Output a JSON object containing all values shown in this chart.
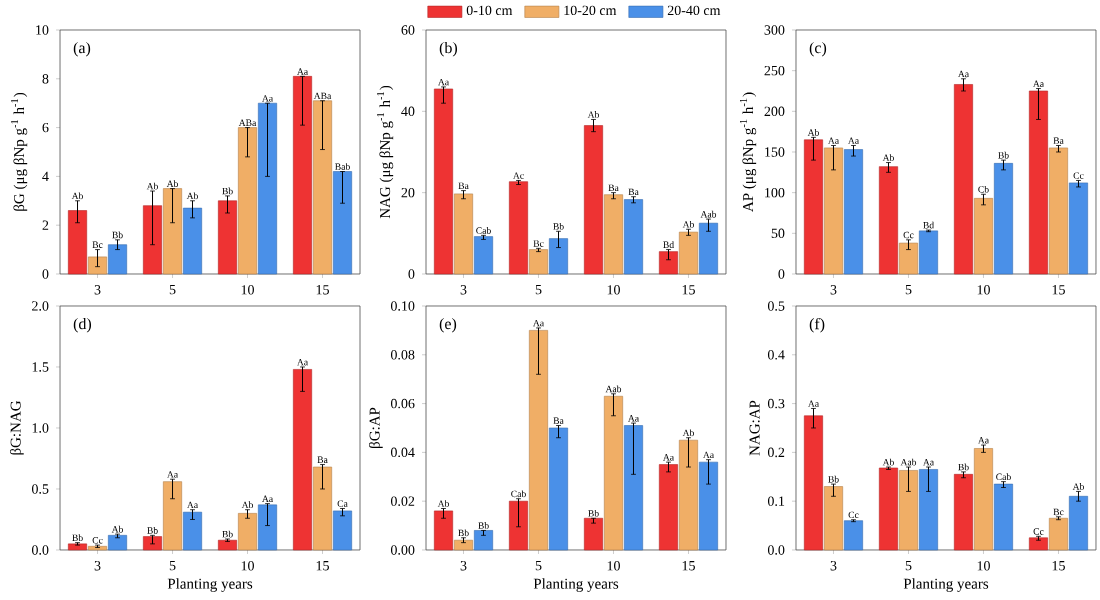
{
  "chart_data": [
    {
      "type": "bar",
      "title": "(a)",
      "ylabel": "βG (μg βNp g$^{-1}$ h$^{-1}$)",
      "categories": [
        "3",
        "5",
        "10",
        "15"
      ],
      "ylim": [
        0,
        10
      ],
      "yticks": [
        0,
        2,
        4,
        6,
        8,
        10
      ],
      "series": [
        {
          "color": "#ee3333",
          "values": [
            2.6,
            2.8,
            3.0,
            8.1
          ],
          "errors": [
            [
              2.1,
              3.0
            ],
            [
              1.2,
              3.4
            ],
            [
              2.5,
              3.2
            ],
            [
              6.1,
              8.1
            ]
          ],
          "value_labels": [
            "Ab",
            "Ab",
            "Bb",
            "Aa"
          ]
        },
        {
          "color": "#f0ae66",
          "values": [
            0.7,
            3.5,
            6.0,
            7.1
          ],
          "errors": [
            [
              0.3,
              1.0
            ],
            [
              2.1,
              3.5
            ],
            [
              4.8,
              6.0
            ],
            [
              5.1,
              7.1
            ]
          ],
          "value_labels": [
            "Bc",
            "Ab",
            "ABa",
            "ABa"
          ]
        },
        {
          "color": "#4a90e8",
          "values": [
            1.2,
            2.7,
            7.0,
            4.2
          ],
          "errors": [
            [
              1.0,
              1.4
            ],
            [
              2.3,
              3.0
            ],
            [
              4.0,
              7.0
            ],
            [
              2.9,
              4.2
            ]
          ],
          "value_labels": [
            "Bb",
            "Ab",
            "Aa",
            "Bab"
          ]
        }
      ]
    },
    {
      "type": "bar",
      "title": "(b)",
      "ylabel": "NAG (μg βNp g$^{-1}$ h$^{-1}$)",
      "categories": [
        "3",
        "5",
        "10",
        "15"
      ],
      "ylim": [
        0,
        60
      ],
      "yticks": [
        0,
        20,
        40,
        60
      ],
      "legend": "top",
      "series": [
        {
          "name": "0-10 cm",
          "color": "#ee3333",
          "values": [
            45.5,
            22.7,
            36.5,
            5.5
          ],
          "errors": [
            [
              42,
              46
            ],
            [
              22,
              23
            ],
            [
              35,
              38
            ],
            [
              3.5,
              6
            ]
          ],
          "value_labels": [
            "Aa",
            "Ac",
            "Ab",
            "Bd"
          ]
        },
        {
          "name": "10-20 cm",
          "color": "#f0ae66",
          "values": [
            19.7,
            6,
            19.5,
            10.3
          ],
          "errors": [
            [
              18.5,
              20.5
            ],
            [
              5.5,
              6.3
            ],
            [
              18.5,
              20
            ],
            [
              9.5,
              11
            ]
          ],
          "value_labels": [
            "Ba",
            "Bc",
            "Ba",
            "Ab"
          ]
        },
        {
          "name": "20-40 cm",
          "color": "#4a90e8",
          "values": [
            9.2,
            8.7,
            18.3,
            12.5
          ],
          "errors": [
            [
              8.5,
              9.5
            ],
            [
              6.5,
              10.5
            ],
            [
              17.5,
              19
            ],
            [
              10.5,
              13.5
            ]
          ],
          "value_labels": [
            "Cab",
            "Bb",
            "Ba",
            "Aab"
          ]
        }
      ]
    },
    {
      "type": "bar",
      "title": "(c)",
      "ylabel": "AP (μg βNp g$^{-1}$ h$^{-1}$)",
      "categories": [
        "3",
        "5",
        "10",
        "15"
      ],
      "ylim": [
        0,
        300
      ],
      "yticks": [
        0,
        50,
        100,
        150,
        200,
        250,
        300
      ],
      "series": [
        {
          "color": "#ee3333",
          "values": [
            165,
            132,
            233,
            225
          ],
          "errors": [
            [
              140,
              168
            ],
            [
              125,
              137
            ],
            [
              225,
              240
            ],
            [
              190,
              228
            ]
          ],
          "value_labels": [
            "Ab",
            "Ab",
            "Aa",
            "Aa"
          ]
        },
        {
          "color": "#f0ae66",
          "values": [
            155,
            38,
            93,
            155
          ],
          "errors": [
            [
              128,
              158
            ],
            [
              30,
              42
            ],
            [
              85,
              98
            ],
            [
              150,
              158
            ]
          ],
          "value_labels": [
            "Aa",
            "Cc",
            "Cb",
            "Ba"
          ]
        },
        {
          "color": "#4a90e8",
          "values": [
            153,
            53,
            136,
            112
          ],
          "errors": [
            [
              145,
              158
            ],
            [
              52,
              54
            ],
            [
              128,
              140
            ],
            [
              107,
              115
            ]
          ],
          "value_labels": [
            "Aa",
            "Bd",
            "Bb",
            "Cc"
          ]
        }
      ]
    },
    {
      "type": "bar",
      "title": "(d)",
      "xlabel": "Planting years",
      "ylabel": "βG:NAG",
      "categories": [
        "3",
        "5",
        "10",
        "15"
      ],
      "ylim": [
        0,
        2
      ],
      "yticks": [
        {
          "value": 0,
          "label": "0.0"
        },
        0.5,
        {
          "value": 1,
          "label": "1.0"
        },
        1.5,
        {
          "value": 2,
          "label": "2.0"
        }
      ],
      "series": [
        {
          "color": "#ee3333",
          "values": [
            0.05,
            0.11,
            0.08,
            1.48
          ],
          "errors": [
            [
              0.04,
              0.06
            ],
            [
              0.05,
              0.12
            ],
            [
              0.07,
              0.09
            ],
            [
              1.3,
              1.5
            ]
          ],
          "value_labels": [
            "Bb",
            "Bb",
            "Bb",
            "Aa"
          ]
        },
        {
          "color": "#f0ae66",
          "values": [
            0.03,
            0.56,
            0.3,
            0.68
          ],
          "errors": [
            [
              0.02,
              0.04
            ],
            [
              0.42,
              0.58
            ],
            [
              0.26,
              0.33
            ],
            [
              0.5,
              0.7
            ]
          ],
          "value_labels": [
            "Cc",
            "Aa",
            "Ab",
            "Ba"
          ]
        },
        {
          "color": "#4a90e8",
          "values": [
            0.12,
            0.31,
            0.37,
            0.32
          ],
          "errors": [
            [
              0.1,
              0.13
            ],
            [
              0.25,
              0.33
            ],
            [
              0.2,
              0.38
            ],
            [
              0.28,
              0.34
            ]
          ],
          "value_labels": [
            "Ab",
            "Aa",
            "Aa",
            "Ca"
          ]
        }
      ]
    },
    {
      "type": "bar",
      "title": "(e)",
      "xlabel": "Planting years",
      "ylabel": "βG:AP",
      "categories": [
        "3",
        "5",
        "10",
        "15"
      ],
      "ylim": [
        0,
        0.1
      ],
      "yticks": [
        {
          "value": 0,
          "label": "0.00"
        },
        {
          "value": 0.02,
          "label": "0.02"
        },
        {
          "value": 0.04,
          "label": "0.04"
        },
        {
          "value": 0.06,
          "label": "0.06"
        },
        {
          "value": 0.08,
          "label": "0.08"
        },
        {
          "value": 0.1,
          "label": "0.10"
        }
      ],
      "series": [
        {
          "color": "#ee3333",
          "values": [
            0.016,
            0.02,
            0.013,
            0.035
          ],
          "errors": [
            [
              0.013,
              0.017
            ],
            [
              0.0095,
              0.021
            ],
            [
              0.011,
              0.013
            ],
            [
              0.032,
              0.036
            ]
          ],
          "value_labels": [
            "Ab",
            "Cab",
            "Bb",
            "Aa"
          ]
        },
        {
          "color": "#f0ae66",
          "values": [
            0.004,
            0.09,
            0.063,
            0.045
          ],
          "errors": [
            [
              0.003,
              0.005
            ],
            [
              0.072,
              0.091
            ],
            [
              0.055,
              0.064
            ],
            [
              0.034,
              0.046
            ]
          ],
          "value_labels": [
            "Bb",
            "Aa",
            "Aab",
            "Ab"
          ]
        },
        {
          "color": "#4a90e8",
          "values": [
            0.008,
            0.05,
            0.051,
            0.036
          ],
          "errors": [
            [
              0.006,
              0.008
            ],
            [
              0.046,
              0.051
            ],
            [
              0.031,
              0.052
            ],
            [
              0.027,
              0.037
            ]
          ],
          "value_labels": [
            "Bb",
            "Ba",
            "Aa",
            "Aa"
          ]
        }
      ]
    },
    {
      "type": "bar",
      "title": "(f)",
      "xlabel": "Planting years",
      "ylabel": "NAG:AP",
      "categories": [
        "3",
        "5",
        "10",
        "15"
      ],
      "ylim": [
        0,
        0.5
      ],
      "yticks": [
        {
          "value": 0,
          "label": "0.0"
        },
        {
          "value": 0.1,
          "label": "0.1"
        },
        {
          "value": 0.2,
          "label": "0.2"
        },
        {
          "value": 0.3,
          "label": "0.3"
        },
        {
          "value": 0.4,
          "label": "0.4"
        },
        {
          "value": 0.5,
          "label": "0.5"
        }
      ],
      "series": [
        {
          "color": "#ee3333",
          "values": [
            0.275,
            0.168,
            0.155,
            0.025
          ],
          "errors": [
            [
              0.25,
              0.29
            ],
            [
              0.165,
              0.17
            ],
            [
              0.148,
              0.16
            ],
            [
              0.02,
              0.028
            ]
          ],
          "value_labels": [
            "Aa",
            "Ab",
            "Bb",
            "Cc"
          ]
        },
        {
          "color": "#f0ae66",
          "values": [
            0.13,
            0.163,
            0.208,
            0.065
          ],
          "errors": [
            [
              0.11,
              0.135
            ],
            [
              0.12,
              0.17
            ],
            [
              0.2,
              0.215
            ],
            [
              0.062,
              0.068
            ]
          ],
          "value_labels": [
            "Bb",
            "Aab",
            "Aa",
            "Bc"
          ]
        },
        {
          "color": "#4a90e8",
          "values": [
            0.06,
            0.165,
            0.135,
            0.11
          ],
          "errors": [
            [
              0.058,
              0.062
            ],
            [
              0.12,
              0.17
            ],
            [
              0.128,
              0.14
            ],
            [
              0.1,
              0.12
            ]
          ],
          "value_labels": [
            "Cc",
            "Aa",
            "Cab",
            "Ab"
          ]
        }
      ]
    }
  ]
}
